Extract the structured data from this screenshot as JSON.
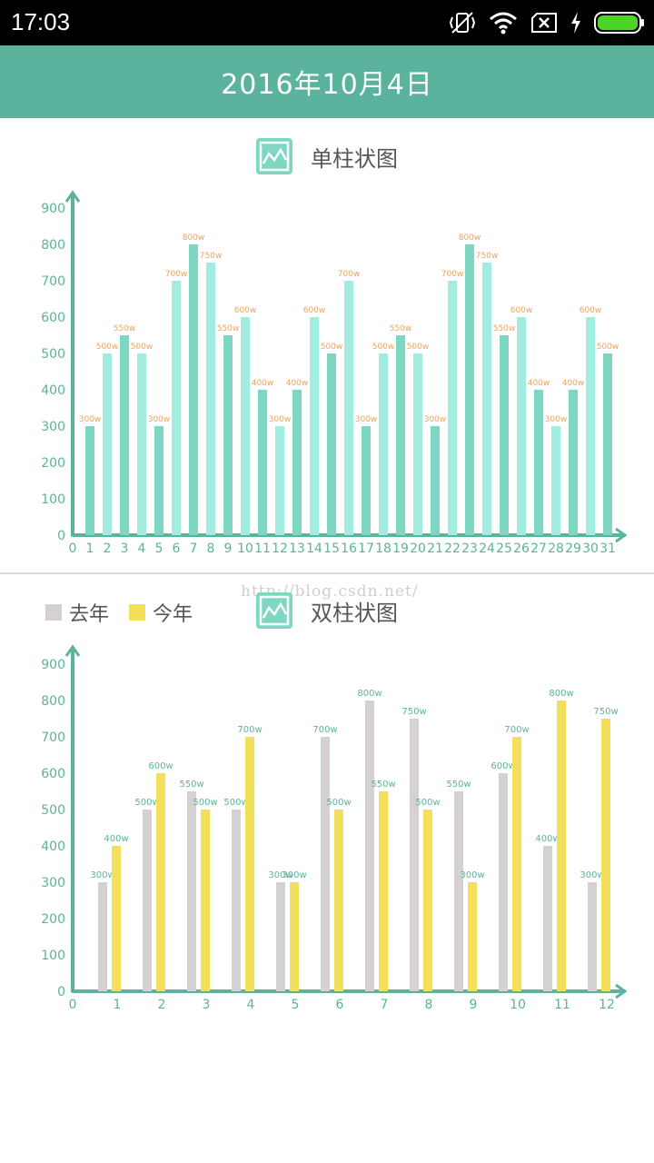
{
  "status_bar": {
    "time": "17:03",
    "icons": [
      "vibrate-off-icon",
      "wifi-icon",
      "no-sim-icon",
      "charging-icon",
      "battery-icon"
    ]
  },
  "header": {
    "title": "2016年10月4日"
  },
  "colors": {
    "primary": "#5bb39d",
    "bar_dark": "#7dd7c2",
    "bar_light": "#a3ede0",
    "last_year": "#d5d0d2",
    "this_year": "#f2df5a",
    "value_label_single": "#f0a35c"
  },
  "chart1": {
    "title": "单柱状图",
    "icon": "line-chart-icon"
  },
  "chart2": {
    "title": "双柱状图",
    "icon": "line-chart-icon",
    "legend": [
      {
        "label": "去年",
        "color": "#d5d0d2"
      },
      {
        "label": "今年",
        "color": "#f2df5a"
      }
    ]
  },
  "watermark": "http://blog.csdn.net/",
  "chart_data": [
    {
      "type": "bar",
      "title": "单柱状图",
      "xlabel": "",
      "ylabel": "",
      "ylim": [
        0,
        900
      ],
      "yticks": [
        0,
        100,
        200,
        300,
        400,
        500,
        600,
        700,
        800,
        900
      ],
      "categories": [
        1,
        2,
        3,
        4,
        5,
        6,
        7,
        8,
        9,
        10,
        11,
        12,
        13,
        14,
        15,
        16,
        17,
        18,
        19,
        20,
        21,
        22,
        23,
        24,
        25,
        26,
        27,
        28,
        29,
        30,
        31
      ],
      "x_tick_labels": [
        "0",
        "1",
        "2",
        "3",
        "4",
        "5",
        "6",
        "7",
        "8",
        "9",
        "10",
        "11",
        "12",
        "13",
        "14",
        "15",
        "16",
        "17",
        "18",
        "19",
        "20",
        "21",
        "22",
        "23",
        "24",
        "25",
        "26",
        "27",
        "28",
        "29",
        "30",
        "31"
      ],
      "values": [
        300,
        500,
        550,
        500,
        300,
        700,
        800,
        750,
        550,
        600,
        400,
        300,
        400,
        600,
        500,
        700,
        300,
        500,
        550,
        500,
        300,
        700,
        800,
        750,
        550,
        600,
        400,
        300,
        400,
        600,
        500
      ],
      "value_labels": [
        "300w",
        "500w",
        "550w",
        "500w",
        "300w",
        "700w",
        "800w",
        "750w",
        "550w",
        "600w",
        "400w",
        "300w",
        "400w",
        "600w",
        "500w",
        "700w",
        "300w",
        "500w",
        "550w",
        "500w",
        "300w",
        "700w",
        "800w",
        "750w",
        "550w",
        "600w",
        "400w",
        "300w",
        "400w",
        "600w",
        "500w"
      ],
      "grid": false
    },
    {
      "type": "bar",
      "title": "双柱状图",
      "xlabel": "",
      "ylabel": "",
      "ylim": [
        0,
        900
      ],
      "yticks": [
        0,
        100,
        200,
        300,
        400,
        500,
        600,
        700,
        800,
        900
      ],
      "categories": [
        1,
        2,
        3,
        4,
        5,
        6,
        7,
        8,
        9,
        10,
        11,
        12
      ],
      "x_tick_labels": [
        "0",
        "1",
        "2",
        "3",
        "4",
        "5",
        "6",
        "7",
        "8",
        "9",
        "10",
        "11",
        "12"
      ],
      "legend_position": "top-left",
      "grid": false,
      "series": [
        {
          "name": "去年",
          "color": "#d5d0d2",
          "values": [
            300,
            500,
            550,
            500,
            300,
            700,
            800,
            750,
            550,
            600,
            400,
            300
          ],
          "value_labels": [
            "300w",
            "500w",
            "550w",
            "500w",
            "300w",
            "700w",
            "800w",
            "750w",
            "550w",
            "600w",
            "400w",
            "300w"
          ]
        },
        {
          "name": "今年",
          "color": "#f2df5a",
          "values": [
            400,
            600,
            500,
            700,
            300,
            500,
            550,
            500,
            300,
            700,
            800,
            750
          ],
          "value_labels": [
            "400w",
            "600w",
            "500w",
            "700w",
            "300w",
            "500w",
            "550w",
            "500w",
            "300w",
            "700w",
            "800w",
            "750w"
          ]
        }
      ]
    }
  ]
}
